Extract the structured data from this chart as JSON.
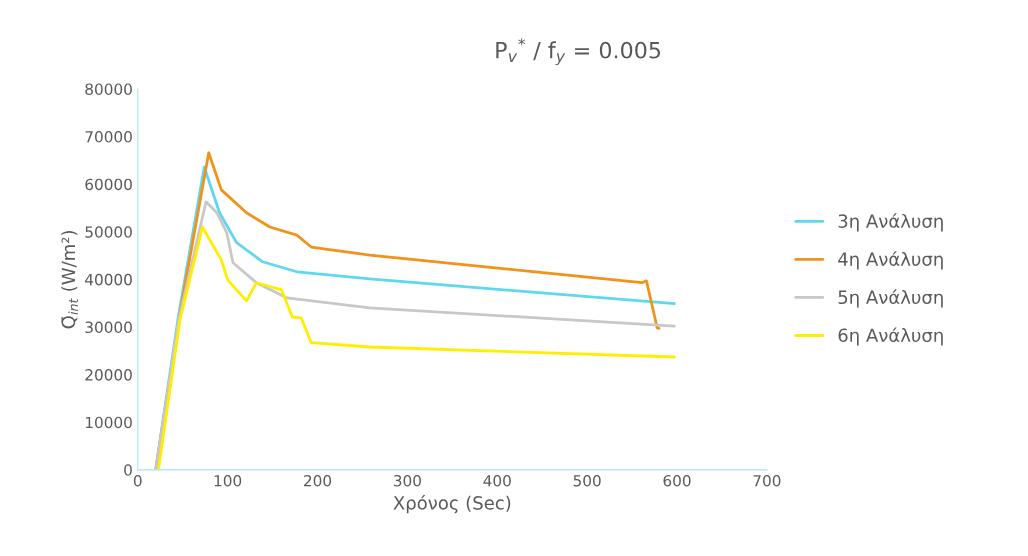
{
  "chart_data": {
    "type": "line",
    "title": "P$_{v}$$^{*}$ / f$_{y}$ = 0.005",
    "xlabel": "Χρόνος (Sec)",
    "ylabel": "Q̄$_{int}$ (W/m²)",
    "xlim": [
      0,
      700
    ],
    "xticks": [
      0,
      100,
      200,
      300,
      400,
      500,
      600,
      700
    ],
    "ylim": [
      0,
      80000
    ],
    "yticks": [
      0,
      10000,
      20000,
      30000,
      40000,
      50000,
      60000,
      70000,
      80000
    ],
    "grid": false,
    "legend": "right",
    "marker": "none",
    "line_style": "solid",
    "series": [
      {
        "name": "3η Ανάλυση",
        "color": "#5fd8ef",
        "x": [
          20,
          45,
          74,
          91,
          110,
          139,
          177,
          258,
          597
        ],
        "values": [
          0,
          32000,
          63600,
          54000,
          47700,
          43700,
          41600,
          40100,
          34900
        ]
      },
      {
        "name": "4η Ανάλυση",
        "color": "#f0921c",
        "x": [
          20,
          47,
          79,
          93,
          121,
          147,
          177,
          193,
          258,
          561,
          566,
          578,
          580
        ],
        "values": [
          0,
          33000,
          66600,
          58800,
          54000,
          51000,
          49300,
          46800,
          45100,
          39300,
          39700,
          29800,
          29700
        ]
      },
      {
        "name": "5η Ανάλυση",
        "color": "#c8c8c8",
        "x": [
          20,
          45,
          76,
          88,
          99,
          106,
          132,
          166,
          258,
          597
        ],
        "values": [
          0,
          31000,
          56300,
          54000,
          49800,
          43500,
          39300,
          36100,
          34000,
          30200
        ]
      },
      {
        "name": "6η Ανάλυση",
        "color": "#ffee00",
        "x": [
          23,
          47,
          72,
          82,
          93,
          100,
          121,
          132,
          160,
          172,
          182,
          193,
          258,
          597
        ],
        "values": [
          0,
          31500,
          51000,
          47700,
          44100,
          39900,
          35500,
          39300,
          37800,
          32100,
          31900,
          26700,
          25800,
          23700
        ]
      }
    ]
  }
}
